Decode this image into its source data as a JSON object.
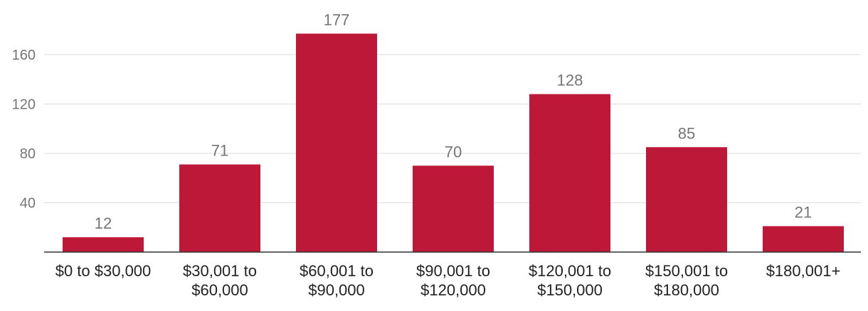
{
  "chart_data": {
    "type": "bar",
    "categories": [
      [
        "$0 to $30,000"
      ],
      [
        "$30,001 to",
        "$60,000"
      ],
      [
        "$60,001 to",
        "$90,000"
      ],
      [
        "$90,001 to",
        "$120,000"
      ],
      [
        "$120,001 to",
        "$150,000"
      ],
      [
        "$150,001 to",
        "$180,000"
      ],
      [
        "$180,001+"
      ]
    ],
    "values": [
      12,
      71,
      177,
      70,
      128,
      85,
      21
    ],
    "yticks": [
      40,
      80,
      120,
      160
    ],
    "ylim": [
      0,
      182
    ],
    "grid": true,
    "legend": "none",
    "bar_color": "#be1838",
    "title": "",
    "xlabel": "",
    "ylabel": ""
  }
}
